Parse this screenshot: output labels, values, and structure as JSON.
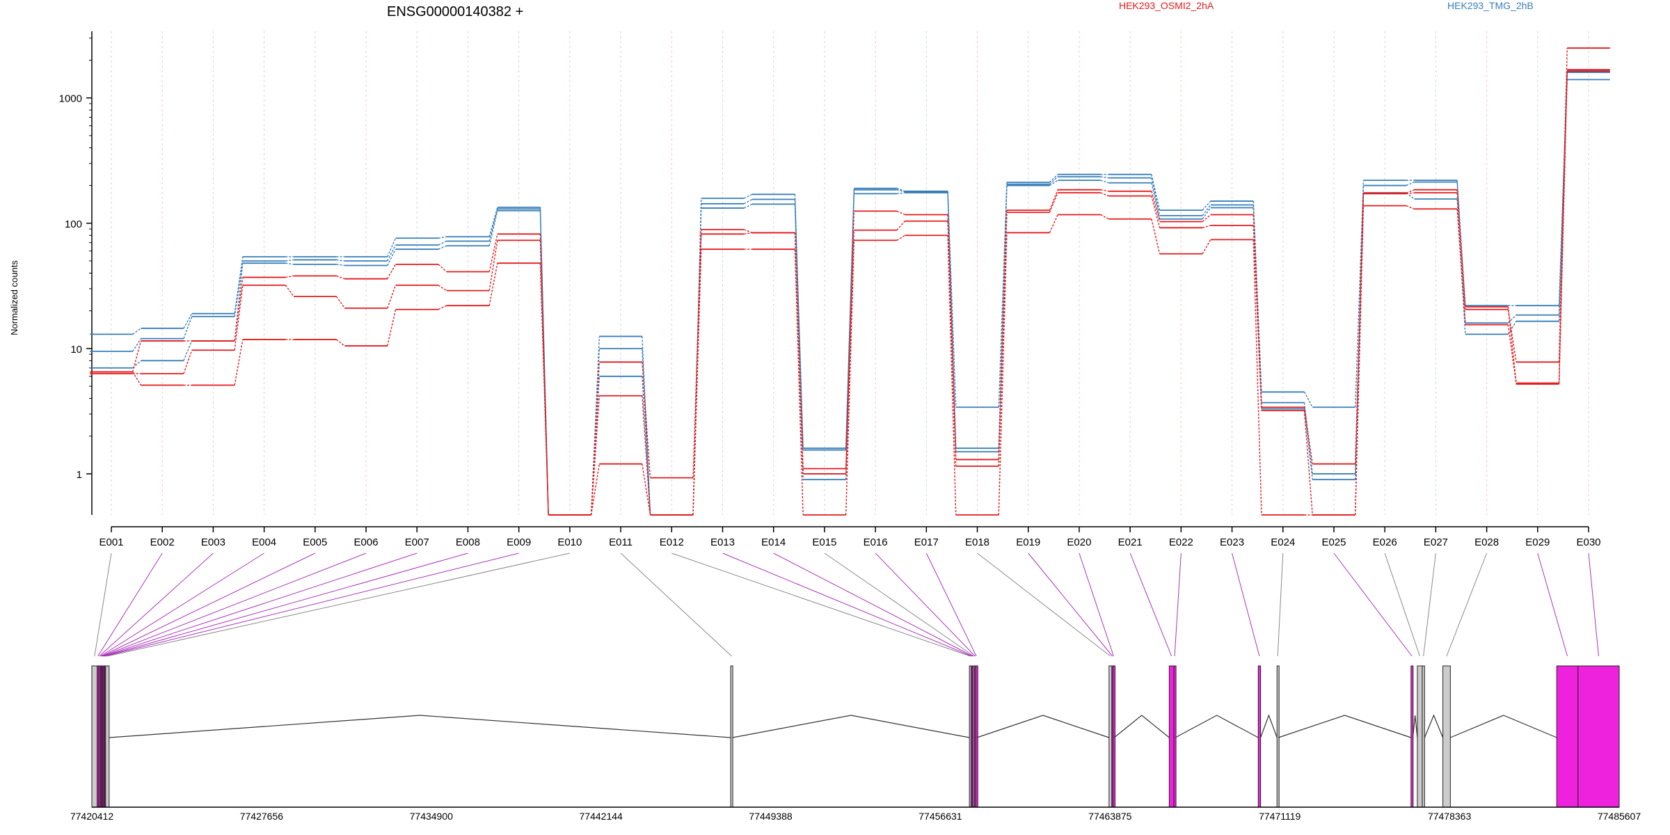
{
  "chart_data": [
    {
      "type": "line",
      "title": "ENSG00000140382 +",
      "ylabel": "Normalized counts",
      "xlabel": "",
      "yscale": "log",
      "ylim": [
        0.47,
        3400
      ],
      "yticks": [
        1,
        10,
        100,
        1000
      ],
      "ytick_labels": [
        "1",
        "10",
        "100",
        "1000"
      ],
      "grid": "vertical dotted lines at each exon bin",
      "legend_position": "top",
      "categories": [
        "E001",
        "E002",
        "E003",
        "E004",
        "E005",
        "E006",
        "E007",
        "E008",
        "E009",
        "E010",
        "E011",
        "E012",
        "E013",
        "E014",
        "E015",
        "E016",
        "E017",
        "E018",
        "E019",
        "E020",
        "E021",
        "E022",
        "E023",
        "E024",
        "E025",
        "E026",
        "E027",
        "E028",
        "E029",
        "E030"
      ],
      "groups": [
        {
          "name": "HEK293_OSMI2_2hA",
          "color": "#e41a1c"
        },
        {
          "name": "HEK293_TMG_2hB",
          "color": "#377eb8"
        }
      ],
      "series": [
        {
          "group": "HEK293_TMG_2hB",
          "values": [
            13.0,
            14.5,
            19.0,
            54.0,
            54.0,
            54.0,
            76.0,
            78.0,
            134.0,
            0.47,
            12.5,
            0.47,
            158.0,
            170.0,
            1.6,
            190.0,
            180.0,
            3.4,
            212.0,
            245.0,
            245.0,
            127.0,
            150.0,
            4.5,
            3.4,
            220.0,
            220.0,
            22.0,
            22.0,
            1650.0
          ]
        },
        {
          "group": "HEK293_TMG_2hB",
          "values": [
            9.5,
            12.0,
            18.0,
            50.0,
            51.0,
            50.0,
            67.0,
            72.0,
            130.0,
            0.47,
            10.0,
            0.47,
            143.0,
            155.0,
            1.55,
            185.0,
            178.0,
            1.6,
            205.0,
            235.0,
            230.0,
            115.0,
            140.0,
            3.7,
            1.0,
            200.0,
            213.0,
            16.0,
            18.5,
            1600.0
          ]
        },
        {
          "group": "HEK293_TMG_2hB",
          "values": [
            7.0,
            8.0,
            11.5,
            48.0,
            47.0,
            46.0,
            62.0,
            66.0,
            126.0,
            0.47,
            6.0,
            0.47,
            132.0,
            142.0,
            0.9,
            172.0,
            175.0,
            1.5,
            200.0,
            220.0,
            210.0,
            108.0,
            133.0,
            3.3,
            0.9,
            175.0,
            156.0,
            13.0,
            16.5,
            1400.0
          ]
        },
        {
          "group": "HEK293_OSMI2_2hA",
          "values": [
            6.5,
            11.5,
            11.5,
            37.0,
            38.0,
            36.0,
            47.0,
            41.0,
            82.0,
            0.47,
            7.8,
            0.93,
            89.0,
            84.0,
            1.1,
            125.0,
            117.0,
            1.3,
            127.0,
            185.0,
            180.0,
            103.0,
            117.0,
            3.4,
            1.2,
            174.0,
            185.0,
            20.5,
            7.8,
            2500.0
          ]
        },
        {
          "group": "HEK293_OSMI2_2hA",
          "values": [
            6.3,
            6.3,
            9.7,
            32.0,
            26.0,
            21.0,
            32.0,
            29.0,
            73.0,
            0.47,
            4.2,
            0.47,
            82.0,
            84.0,
            1.0,
            88.0,
            104.0,
            1.15,
            122.0,
            175.0,
            165.0,
            92.0,
            96.0,
            3.2,
            0.47,
            172.0,
            175.0,
            21.5,
            5.3,
            1680.0
          ]
        },
        {
          "group": "HEK293_OSMI2_2hA",
          "values": [
            6.5,
            5.1,
            5.1,
            11.8,
            11.8,
            10.5,
            20.5,
            22.0,
            48.0,
            0.47,
            1.2,
            0.47,
            62.0,
            62.0,
            0.47,
            73.0,
            80.0,
            0.47,
            84.0,
            117.0,
            108.0,
            57.0,
            74.0,
            0.47,
            0.47,
            138.0,
            130.0,
            15.5,
            5.2,
            1630.0
          ]
        }
      ]
    },
    {
      "type": "diagram",
      "description_label": "gene model",
      "genomic_axis_ticks": [
        "77420412",
        "77427656",
        "77434900",
        "77442144",
        "77449388",
        "77456631",
        "77463875",
        "77471119",
        "77478363",
        "77485607"
      ],
      "axis_range": [
        77420412,
        77485607
      ],
      "exons": [
        {
          "id": "E001",
          "start": 77420412,
          "end": 77420640,
          "differential": false
        },
        {
          "id": "E002",
          "start": 77420640,
          "end": 77420700,
          "differential": true
        },
        {
          "id": "E003",
          "start": 77420700,
          "end": 77420760,
          "differential": true
        },
        {
          "id": "E004",
          "start": 77420760,
          "end": 77420800,
          "differential": true
        },
        {
          "id": "E005",
          "start": 77420800,
          "end": 77420840,
          "differential": true
        },
        {
          "id": "E006",
          "start": 77420840,
          "end": 77420880,
          "differential": true
        },
        {
          "id": "E007",
          "start": 77420880,
          "end": 77420920,
          "differential": true
        },
        {
          "id": "E008",
          "start": 77420920,
          "end": 77420960,
          "differential": true
        },
        {
          "id": "E009",
          "start": 77420960,
          "end": 77421000,
          "differential": true
        },
        {
          "id": "E010",
          "start": 77421000,
          "end": 77421150,
          "differential": false
        },
        {
          "id": "E011",
          "start": 77447680,
          "end": 77447760,
          "differential": false
        },
        {
          "id": "E012",
          "start": 77457870,
          "end": 77457940,
          "differential": false
        },
        {
          "id": "E013",
          "start": 77457940,
          "end": 77457990,
          "differential": true
        },
        {
          "id": "E014",
          "start": 77457990,
          "end": 77458040,
          "differential": true
        },
        {
          "id": "E015",
          "start": 77458040,
          "end": 77458090,
          "differential": false
        },
        {
          "id": "E016",
          "start": 77458090,
          "end": 77458140,
          "differential": true
        },
        {
          "id": "E017",
          "start": 77458140,
          "end": 77458190,
          "differential": true
        },
        {
          "id": "E018",
          "start": 77463830,
          "end": 77463950,
          "differential": false
        },
        {
          "id": "E019",
          "start": 77463950,
          "end": 77464000,
          "differential": true
        },
        {
          "id": "E020",
          "start": 77464000,
          "end": 77464050,
          "differential": true
        },
        {
          "id": "E021",
          "start": 77466400,
          "end": 77466600,
          "differential": true
        },
        {
          "id": "E022",
          "start": 77466600,
          "end": 77466660,
          "differential": true
        },
        {
          "id": "E023",
          "start": 77470200,
          "end": 77470300,
          "differential": true
        },
        {
          "id": "E024",
          "start": 77471000,
          "end": 77471060,
          "differential": false
        },
        {
          "id": "E025",
          "start": 77476720,
          "end": 77476800,
          "differential": true
        },
        {
          "id": "E026",
          "start": 77476990,
          "end": 77477200,
          "differential": false
        },
        {
          "id": "E027",
          "start": 77477200,
          "end": 77477300,
          "differential": false
        },
        {
          "id": "E028",
          "start": 77478080,
          "end": 77478400,
          "differential": false
        },
        {
          "id": "E029",
          "start": 77482940,
          "end": 77483850,
          "differential": true
        },
        {
          "id": "E030",
          "start": 77483850,
          "end": 77485607,
          "differential": true
        }
      ],
      "introns": [
        [
          77421150,
          77447680
        ],
        [
          77447760,
          77457870
        ],
        [
          77458190,
          77463830
        ],
        [
          77464050,
          77466400
        ],
        [
          77466660,
          77470200
        ],
        [
          77470300,
          77471000
        ],
        [
          77471060,
          77476720
        ],
        [
          77476800,
          77476990
        ],
        [
          77477300,
          77478080
        ],
        [
          77478400,
          77482940
        ]
      ],
      "colors": {
        "differential": "#ee22dd",
        "normal": "#cccccc",
        "line": "#333333",
        "link_normal": "#888888",
        "link_diff": "#aa33bb"
      }
    }
  ]
}
